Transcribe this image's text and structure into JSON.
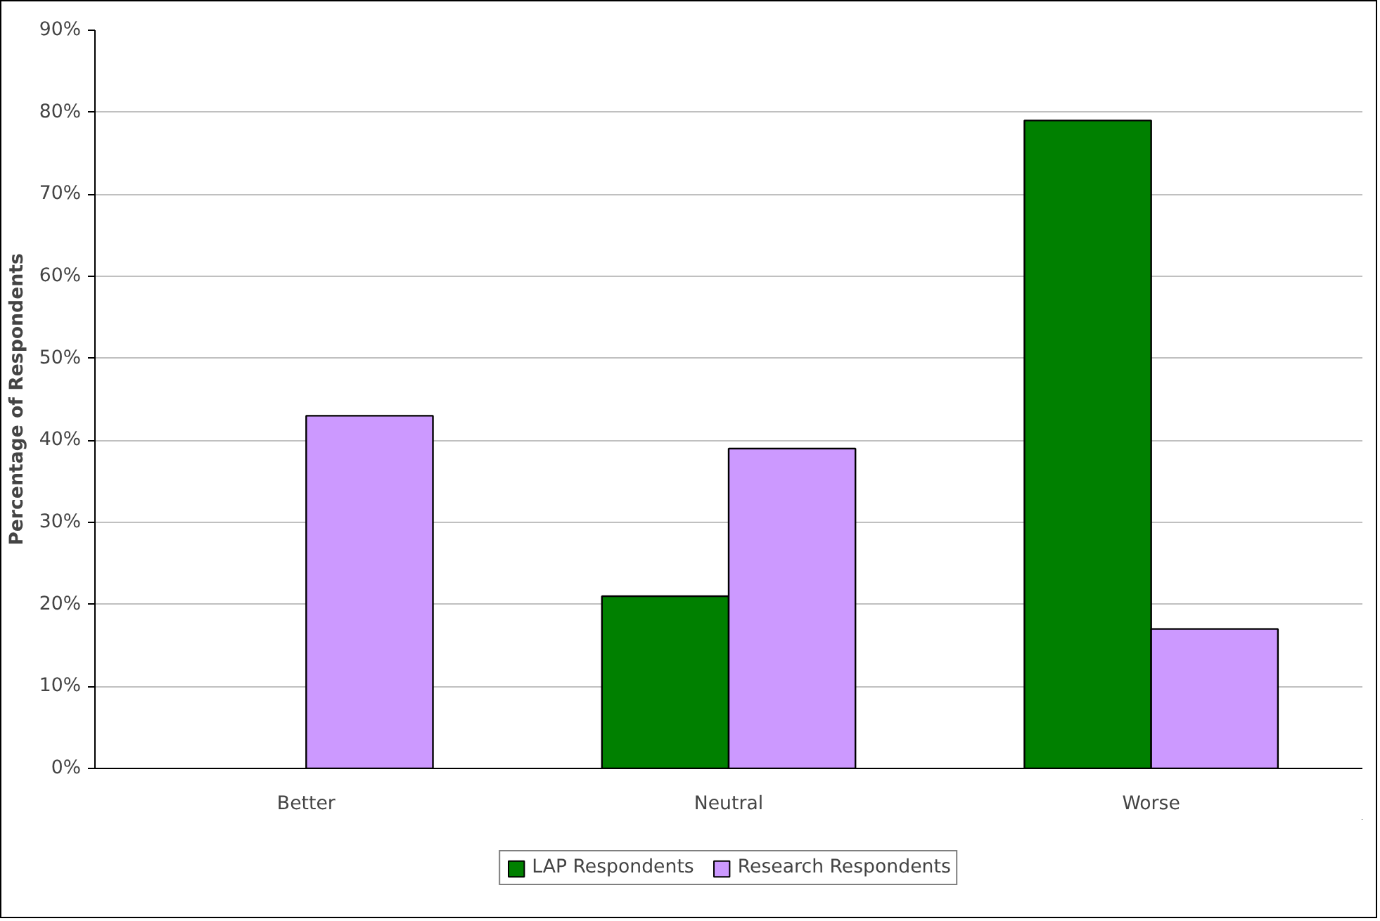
{
  "chart_data": {
    "type": "bar",
    "ylabel": "Percentage of Respondents",
    "categories": [
      "Better",
      "Neutral",
      "Worse"
    ],
    "series": [
      {
        "name": "LAP Respondents",
        "color": "#008000",
        "values": [
          null,
          21,
          79
        ]
      },
      {
        "name": "Research Respondents",
        "color": "#cc99ff",
        "values": [
          43,
          39,
          17
        ]
      }
    ],
    "ylim": [
      0,
      90
    ],
    "yticks": [
      {
        "value": 0,
        "label": "0%"
      },
      {
        "value": 10,
        "label": "10%"
      },
      {
        "value": 20,
        "label": "20%"
      },
      {
        "value": 30,
        "label": "30%"
      },
      {
        "value": 40,
        "label": "40%"
      },
      {
        "value": 50,
        "label": "50%"
      },
      {
        "value": 60,
        "label": "60%"
      },
      {
        "value": 70,
        "label": "70%"
      },
      {
        "value": 80,
        "label": "80%"
      },
      {
        "value": 90,
        "label": "90%"
      }
    ],
    "grid": "y",
    "legend": "bottom"
  }
}
